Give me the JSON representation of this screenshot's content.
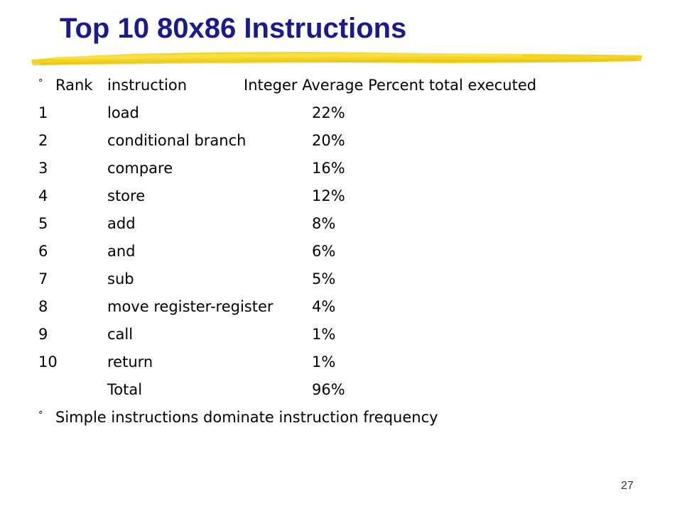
{
  "title": "Top 10 80x86 Instructions",
  "header": {
    "bullet": "°",
    "rank_label": "Rank",
    "instruction_label": "instruction",
    "percent_label": "Integer Average Percent total executed"
  },
  "rows": [
    {
      "rank": "1",
      "instruction": "load",
      "percent": "22%"
    },
    {
      "rank": "2",
      "instruction": "conditional branch",
      "percent": "20%"
    },
    {
      "rank": "3",
      "instruction": "compare",
      "percent": "16%"
    },
    {
      "rank": "4",
      "instruction": "store",
      "percent": "12%"
    },
    {
      "rank": "5",
      "instruction": "add",
      "percent": "8%"
    },
    {
      "rank": "6",
      "instruction": "and",
      "percent": "6%"
    },
    {
      "rank": "7",
      "instruction": "sub",
      "percent": "5%"
    },
    {
      "rank": "8",
      "instruction": "move register-register",
      "percent": "4%"
    },
    {
      "rank": "9",
      "instruction": "call",
      "percent": "1%"
    },
    {
      "rank": "10",
      "instruction": "return",
      "percent": "1%"
    }
  ],
  "total": {
    "label": "Total",
    "percent": "96%"
  },
  "footer_bullet": {
    "bullet": "°",
    "text": "Simple instructions dominate instruction frequency"
  },
  "page_number": "27",
  "colors": {
    "title": "#1a1a8c",
    "underline": "#f2d21a"
  }
}
